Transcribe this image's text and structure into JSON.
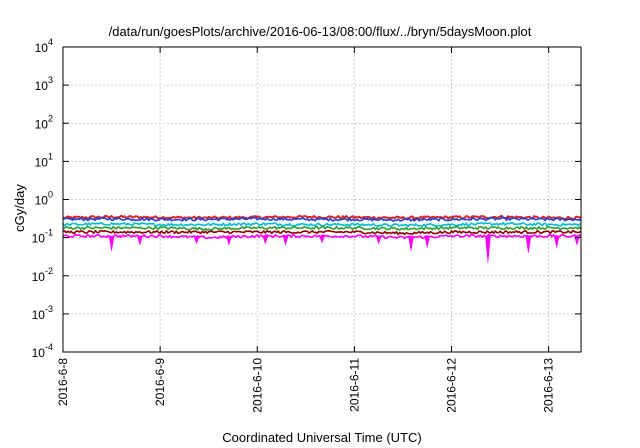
{
  "chart_data": {
    "type": "line",
    "title": "/data/run/goesPlots/archive/2016-06-13/08:00/flux/../bryn/5daysMoon.plot",
    "xlabel": "Coordinated Universal Time (UTC)",
    "ylabel": "cGy/day",
    "yscale": "log",
    "ylim": [
      0.0001,
      10000
    ],
    "xlim": [
      "2016-06-08T00:00",
      "2016-06-13T08:00"
    ],
    "grid": true,
    "legend": "none",
    "yticks": [
      {
        "base": "10",
        "exp": "-4"
      },
      {
        "base": "10",
        "exp": "-3"
      },
      {
        "base": "10",
        "exp": "-2"
      },
      {
        "base": "10",
        "exp": "-1"
      },
      {
        "base": "10",
        "exp": "0"
      },
      {
        "base": "10",
        "exp": "1"
      },
      {
        "base": "10",
        "exp": "2"
      },
      {
        "base": "10",
        "exp": "3"
      },
      {
        "base": "10",
        "exp": "4"
      }
    ],
    "xticks": [
      "2016-6-8",
      "2016-6-9",
      "2016-6-10",
      "2016-6-11",
      "2016-6-12",
      "2016-6-13"
    ],
    "series": [
      {
        "color": "#d62728",
        "x": [
          "2016-06-08T00:00",
          "2016-06-08T12:00",
          "2016-06-09T00:00",
          "2016-06-09T12:00",
          "2016-06-10T00:00",
          "2016-06-10T12:00",
          "2016-06-11T00:00",
          "2016-06-11T12:00",
          "2016-06-12T00:00",
          "2016-06-12T12:00",
          "2016-06-13T00:00",
          "2016-06-13T08:00"
        ],
        "y": [
          0.33,
          0.35,
          0.34,
          0.33,
          0.34,
          0.35,
          0.34,
          0.33,
          0.34,
          0.35,
          0.33,
          0.33
        ]
      },
      {
        "color": "#1f3fd6",
        "x": [
          "2016-06-08T00:00",
          "2016-06-08T12:00",
          "2016-06-09T00:00",
          "2016-06-09T12:00",
          "2016-06-10T00:00",
          "2016-06-10T12:00",
          "2016-06-11T00:00",
          "2016-06-11T12:00",
          "2016-06-12T00:00",
          "2016-06-12T12:00",
          "2016-06-13T00:00",
          "2016-06-13T08:00"
        ],
        "y": [
          0.3,
          0.31,
          0.3,
          0.3,
          0.31,
          0.3,
          0.3,
          0.29,
          0.3,
          0.31,
          0.3,
          0.3
        ]
      },
      {
        "color": "#00bcd4",
        "x": [
          "2016-06-08T00:00",
          "2016-06-08T12:00",
          "2016-06-09T00:00",
          "2016-06-09T12:00",
          "2016-06-10T00:00",
          "2016-06-10T12:00",
          "2016-06-11T00:00",
          "2016-06-11T12:00",
          "2016-06-12T00:00",
          "2016-06-12T12:00",
          "2016-06-13T00:00",
          "2016-06-13T08:00"
        ],
        "y": [
          0.22,
          0.23,
          0.22,
          0.22,
          0.23,
          0.22,
          0.22,
          0.21,
          0.22,
          0.23,
          0.22,
          0.22
        ]
      },
      {
        "color": "#2ca02c",
        "x": [
          "2016-06-08T00:00",
          "2016-06-08T12:00",
          "2016-06-09T00:00",
          "2016-06-09T12:00",
          "2016-06-10T00:00",
          "2016-06-10T12:00",
          "2016-06-11T00:00",
          "2016-06-11T12:00",
          "2016-06-12T00:00",
          "2016-06-12T12:00",
          "2016-06-13T00:00",
          "2016-06-13T08:00"
        ],
        "y": [
          0.18,
          0.18,
          0.18,
          0.17,
          0.18,
          0.18,
          0.18,
          0.17,
          0.18,
          0.18,
          0.18,
          0.18
        ]
      },
      {
        "color": "#8b0000",
        "x": [
          "2016-06-08T00:00",
          "2016-06-08T12:00",
          "2016-06-09T00:00",
          "2016-06-09T12:00",
          "2016-06-10T00:00",
          "2016-06-10T12:00",
          "2016-06-11T00:00",
          "2016-06-11T12:00",
          "2016-06-12T00:00",
          "2016-06-12T12:00",
          "2016-06-13T00:00",
          "2016-06-13T08:00"
        ],
        "y": [
          0.14,
          0.14,
          0.14,
          0.14,
          0.14,
          0.14,
          0.14,
          0.13,
          0.14,
          0.14,
          0.14,
          0.14
        ]
      },
      {
        "color": "#ff00ff",
        "x": [
          "2016-06-08T00:00",
          "2016-06-08T12:00",
          "2016-06-09T00:00",
          "2016-06-09T12:00",
          "2016-06-10T00:00",
          "2016-06-10T12:00",
          "2016-06-11T00:00",
          "2016-06-11T12:00",
          "2016-06-12T00:00",
          "2016-06-12T12:00",
          "2016-06-13T00:00",
          "2016-06-13T08:00"
        ],
        "y": [
          0.11,
          0.11,
          0.11,
          0.1,
          0.11,
          0.11,
          0.11,
          0.1,
          0.11,
          0.11,
          0.11,
          0.11
        ]
      }
    ],
    "dips": [
      {
        "x": "2016-06-08T12:00",
        "y": 0.045
      },
      {
        "x": "2016-06-08T19:00",
        "y": 0.065
      },
      {
        "x": "2016-06-09T09:00",
        "y": 0.07
      },
      {
        "x": "2016-06-09T17:00",
        "y": 0.065
      },
      {
        "x": "2016-06-10T02:00",
        "y": 0.07
      },
      {
        "x": "2016-06-10T07:00",
        "y": 0.065
      },
      {
        "x": "2016-06-10T16:00",
        "y": 0.075
      },
      {
        "x": "2016-06-11T06:00",
        "y": 0.07
      },
      {
        "x": "2016-06-11T14:00",
        "y": 0.045
      },
      {
        "x": "2016-06-11T18:00",
        "y": 0.055
      },
      {
        "x": "2016-06-12T09:00",
        "y": 0.022
      },
      {
        "x": "2016-06-12T19:00",
        "y": 0.04
      },
      {
        "x": "2016-06-13T02:00",
        "y": 0.055
      },
      {
        "x": "2016-06-13T07:00",
        "y": 0.065
      }
    ]
  }
}
